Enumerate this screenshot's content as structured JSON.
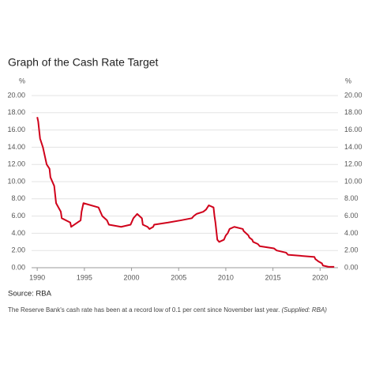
{
  "chart_data": {
    "type": "line",
    "title": "Graph of the Cash Rate Target",
    "y_unit": "%",
    "source": "Source: RBA",
    "caption": "The Reserve Bank's cash rate has been at a record low of 0.1 per cent since November last year.",
    "credit": "(Supplied: RBA)",
    "x": [
      1990.0,
      1990.1,
      1990.3,
      1990.6,
      1990.8,
      1991.0,
      1991.3,
      1991.4,
      1991.8,
      1991.9,
      1992.0,
      1992.5,
      1992.6,
      1993.5,
      1993.6,
      1994.6,
      1994.7,
      1994.9,
      1996.5,
      1996.9,
      1997.4,
      1997.6,
      1998.9,
      1999.9,
      2000.1,
      2000.2,
      2000.4,
      2000.6,
      2001.1,
      2001.2,
      2001.7,
      2001.9,
      2002.3,
      2002.4,
      2003.9,
      2005.2,
      2006.4,
      2006.6,
      2006.9,
      2007.6,
      2007.9,
      2008.2,
      2008.7,
      2008.8,
      2008.9,
      2009.0,
      2009.1,
      2009.3,
      2009.8,
      2009.9,
      2010.0,
      2010.2,
      2010.3,
      2010.4,
      2010.9,
      2011.8,
      2011.9,
      2012.4,
      2012.5,
      2012.8,
      2012.9,
      2013.4,
      2013.6,
      2015.1,
      2015.4,
      2016.4,
      2016.6,
      2019.4,
      2019.5,
      2019.8,
      2020.2,
      2020.3,
      2020.9,
      2021.5
    ],
    "series": [
      {
        "name": "Cash rate target",
        "color": "#d0021b",
        "values": [
          17.5,
          17.0,
          15.0,
          14.0,
          13.0,
          12.0,
          11.5,
          10.5,
          9.5,
          8.5,
          7.5,
          6.5,
          5.75,
          5.25,
          4.75,
          5.5,
          6.5,
          7.5,
          7.0,
          6.0,
          5.5,
          5.0,
          4.75,
          5.0,
          5.5,
          5.75,
          6.0,
          6.25,
          5.75,
          5.0,
          4.75,
          4.5,
          4.75,
          5.0,
          5.25,
          5.5,
          5.75,
          6.0,
          6.25,
          6.5,
          6.75,
          7.25,
          7.0,
          6.0,
          5.25,
          4.25,
          3.25,
          3.0,
          3.25,
          3.5,
          3.75,
          4.0,
          4.25,
          4.5,
          4.75,
          4.5,
          4.25,
          3.75,
          3.5,
          3.25,
          3.0,
          2.75,
          2.5,
          2.25,
          2.0,
          1.75,
          1.5,
          1.25,
          1.0,
          0.75,
          0.5,
          0.25,
          0.1,
          0.1
        ]
      }
    ],
    "xlim": [
      1989.4,
      2021.9
    ],
    "xticks": [
      1990,
      1995,
      2000,
      2005,
      2010,
      2015,
      2020
    ],
    "ylim": [
      0,
      20
    ],
    "yticks": [
      {
        "value": 0,
        "label": "0.00"
      },
      {
        "value": 2,
        "label": "2.00"
      },
      {
        "value": 4,
        "label": "4.00"
      },
      {
        "value": 6,
        "label": "6.00"
      },
      {
        "value": 8,
        "label": "8.00"
      },
      {
        "value": 10,
        "label": "10.00"
      },
      {
        "value": 12,
        "label": "12.00"
      },
      {
        "value": 14,
        "label": "14.00"
      },
      {
        "value": 16,
        "label": "16.00"
      },
      {
        "value": 18,
        "label": "18.00"
      },
      {
        "value": 20,
        "label": "20.00"
      }
    ],
    "grid": true
  }
}
